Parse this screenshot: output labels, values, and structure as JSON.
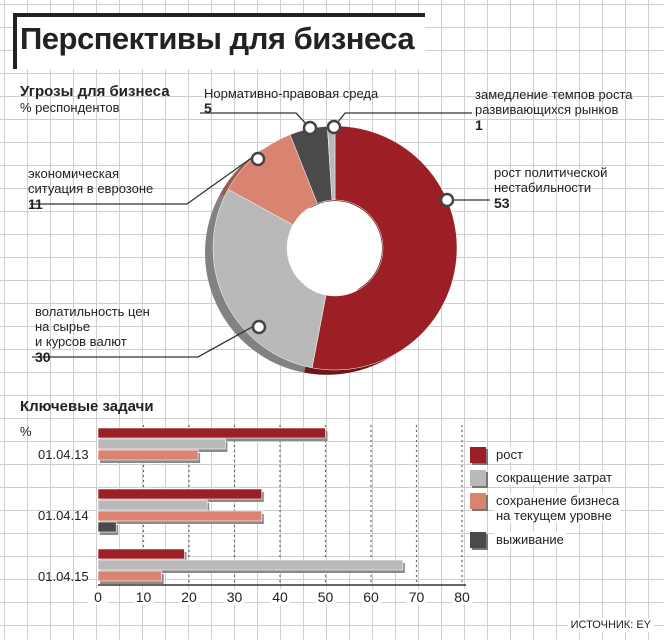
{
  "title": "Перспективы для бизнеса",
  "source": "ИСТОЧНИК: EY",
  "colors": {
    "rost": "#9b1f24",
    "sokrashchenie": "#b9b9b9",
    "sokhranenie": "#d98470",
    "vyzhivanie": "#4a4a4a"
  },
  "chart_data": [
    {
      "type": "pie",
      "title": "Угрозы для бизнеса",
      "subtitle": "% респондентов",
      "slices": [
        {
          "label": "рост политической нестабильности",
          "value": 53,
          "color": "#9b1f24"
        },
        {
          "label": "волатильность цен на сырье и курсов валют",
          "value": 30,
          "color": "#b9b9b9"
        },
        {
          "label": "экономическая ситуация в еврозоне",
          "value": 11,
          "color": "#d98470"
        },
        {
          "label": "Нормативно-правовая среда",
          "value": 5,
          "color": "#4a4a4a"
        },
        {
          "label": "замедление темпов роста развивающихся рынков",
          "value": 1,
          "color": "#b9b9b9"
        }
      ]
    },
    {
      "type": "bar",
      "orientation": "horizontal",
      "title": "Ключевые задачи",
      "ylabel": "%",
      "categories": [
        "01.04.13",
        "01.04.14",
        "01.04.15"
      ],
      "xlim": [
        0,
        80
      ],
      "xticks": [
        0,
        10,
        20,
        30,
        40,
        50,
        60,
        70,
        80
      ],
      "series": [
        {
          "name": "рост",
          "values": [
            50,
            36,
            19
          ],
          "color": "#9b1f24"
        },
        {
          "name": "сокращение затрат",
          "values": [
            28,
            24,
            67
          ],
          "color": "#b9b9b9"
        },
        {
          "name": "сохранение бизнеса на текущем уровне",
          "values": [
            22,
            36,
            14
          ],
          "color": "#d98470"
        },
        {
          "name": "выживание",
          "values": [
            0,
            4,
            0
          ],
          "color": "#4a4a4a"
        }
      ]
    }
  ],
  "donut_labels": {
    "normativ": {
      "text": "Нормативно-правовая среда",
      "value": "5"
    },
    "zamedlenie": {
      "line1": "замедление темпов роста",
      "line2": "развивающихся рынков",
      "value": "1"
    },
    "rost": {
      "line1": "рост политической",
      "line2": "нестабильности",
      "value": "53"
    },
    "ekonom": {
      "line1": "экономическая",
      "line2": "ситуация в еврозоне",
      "value": "11"
    },
    "volat": {
      "line1": "волатильность цен",
      "line2": "на сырье",
      "line3": "и курсов валют",
      "value": "30"
    }
  },
  "legend": [
    {
      "line1": "рост",
      "line2": ""
    },
    {
      "line1": "сокращение затрат",
      "line2": ""
    },
    {
      "line1": "сохранение бизнеса",
      "line2": "на текущем уровне"
    },
    {
      "line1": "выживание",
      "line2": ""
    }
  ]
}
